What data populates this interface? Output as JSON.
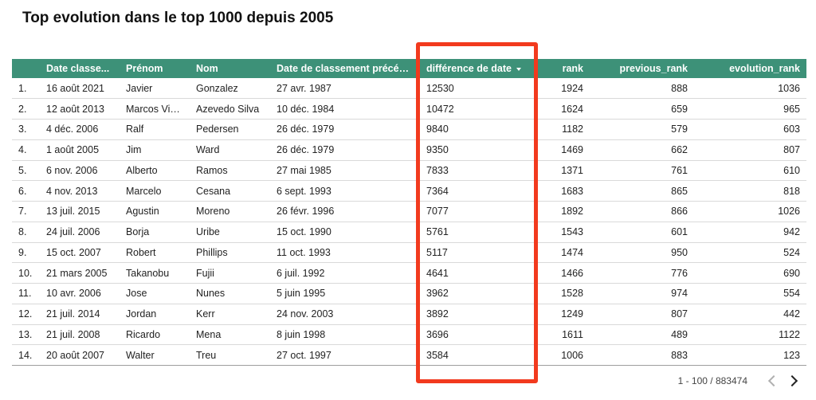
{
  "title": "Top evolution dans le top 1000 depuis 2005",
  "columns": [
    {
      "key": "idx",
      "label": ""
    },
    {
      "key": "date",
      "label": "Date classe..."
    },
    {
      "key": "prenom",
      "label": "Prénom"
    },
    {
      "key": "nom",
      "label": "Nom"
    },
    {
      "key": "prev_date",
      "label": "Date de classement précédent"
    },
    {
      "key": "diff",
      "label": "différence de date"
    },
    {
      "key": "rank",
      "label": "rank"
    },
    {
      "key": "previous_rank",
      "label": "previous_rank"
    },
    {
      "key": "evolution_rank",
      "label": "evolution_rank"
    }
  ],
  "sort": {
    "column": "diff",
    "direction": "desc",
    "icon": "sort-desc-icon"
  },
  "rows": [
    {
      "idx": "1.",
      "date": "16 août 2021",
      "prenom": "Javier",
      "nom": "Gonzalez",
      "prev_date": "27 avr. 1987",
      "diff": "12530",
      "rank": "1924",
      "previous_rank": "888",
      "evolution_rank": "1036"
    },
    {
      "idx": "2.",
      "date": "12 août 2013",
      "prenom": "Marcos Vini...",
      "nom": "Azevedo Silva",
      "prev_date": "10 déc. 1984",
      "diff": "10472",
      "rank": "1624",
      "previous_rank": "659",
      "evolution_rank": "965"
    },
    {
      "idx": "3.",
      "date": "4 déc. 2006",
      "prenom": "Ralf",
      "nom": "Pedersen",
      "prev_date": "26 déc. 1979",
      "diff": "9840",
      "rank": "1182",
      "previous_rank": "579",
      "evolution_rank": "603"
    },
    {
      "idx": "4.",
      "date": "1 août 2005",
      "prenom": "Jim",
      "nom": "Ward",
      "prev_date": "26 déc. 1979",
      "diff": "9350",
      "rank": "1469",
      "previous_rank": "662",
      "evolution_rank": "807"
    },
    {
      "idx": "5.",
      "date": "6 nov. 2006",
      "prenom": "Alberto",
      "nom": "Ramos",
      "prev_date": "27 mai 1985",
      "diff": "7833",
      "rank": "1371",
      "previous_rank": "761",
      "evolution_rank": "610"
    },
    {
      "idx": "6.",
      "date": "4 nov. 2013",
      "prenom": "Marcelo",
      "nom": "Cesana",
      "prev_date": "6 sept. 1993",
      "diff": "7364",
      "rank": "1683",
      "previous_rank": "865",
      "evolution_rank": "818"
    },
    {
      "idx": "7.",
      "date": "13 juil. 2015",
      "prenom": "Agustin",
      "nom": "Moreno",
      "prev_date": "26 févr. 1996",
      "diff": "7077",
      "rank": "1892",
      "previous_rank": "866",
      "evolution_rank": "1026"
    },
    {
      "idx": "8.",
      "date": "24 juil. 2006",
      "prenom": "Borja",
      "nom": "Uribe",
      "prev_date": "15 oct. 1990",
      "diff": "5761",
      "rank": "1543",
      "previous_rank": "601",
      "evolution_rank": "942"
    },
    {
      "idx": "9.",
      "date": "15 oct. 2007",
      "prenom": "Robert",
      "nom": "Phillips",
      "prev_date": "11 oct. 1993",
      "diff": "5117",
      "rank": "1474",
      "previous_rank": "950",
      "evolution_rank": "524"
    },
    {
      "idx": "10.",
      "date": "21 mars 2005",
      "prenom": "Takanobu",
      "nom": "Fujii",
      "prev_date": "6 juil. 1992",
      "diff": "4641",
      "rank": "1466",
      "previous_rank": "776",
      "evolution_rank": "690"
    },
    {
      "idx": "11.",
      "date": "10 avr. 2006",
      "prenom": "Jose",
      "nom": "Nunes",
      "prev_date": "5 juin 1995",
      "diff": "3962",
      "rank": "1528",
      "previous_rank": "974",
      "evolution_rank": "554"
    },
    {
      "idx": "12.",
      "date": "21 juil. 2014",
      "prenom": "Jordan",
      "nom": "Kerr",
      "prev_date": "24 nov. 2003",
      "diff": "3892",
      "rank": "1249",
      "previous_rank": "807",
      "evolution_rank": "442"
    },
    {
      "idx": "13.",
      "date": "21 juil. 2008",
      "prenom": "Ricardo",
      "nom": "Mena",
      "prev_date": "8 juin 1998",
      "diff": "3696",
      "rank": "1611",
      "previous_rank": "489",
      "evolution_rank": "1122"
    },
    {
      "idx": "14.",
      "date": "20 août 2007",
      "prenom": "Walter",
      "nom": "Treu",
      "prev_date": "27 oct. 1997",
      "diff": "3584",
      "rank": "1006",
      "previous_rank": "883",
      "evolution_rank": "123"
    }
  ],
  "pagination": {
    "range": "1 - 100 / 883474",
    "prev_icon": "chevron-left-icon",
    "next_icon": "chevron-right-icon"
  },
  "colors": {
    "header_bg": "#3d9178",
    "highlight": "#f23a1e"
  }
}
